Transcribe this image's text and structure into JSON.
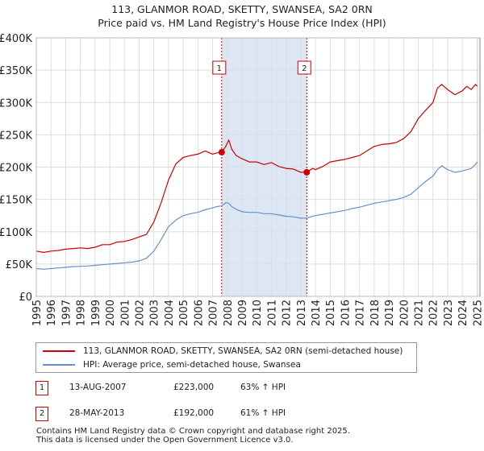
{
  "title": {
    "line1": "113, GLANMOR ROAD, SKETTY, SWANSEA, SA2 0RN",
    "line2": "Price paid vs. HM Land Registry's House Price Index (HPI)"
  },
  "legend": {
    "property": "113, GLANMOR ROAD, SKETTY, SWANSEA, SA2 0RN (semi-detached house)",
    "hpi": "HPI: Average price, semi-detached house, Swansea"
  },
  "sales": [
    {
      "num": "1",
      "date": "13-AUG-2007",
      "price": "£223,000",
      "hpi_change": "63% ↑ HPI"
    },
    {
      "num": "2",
      "date": "28-MAY-2013",
      "price": "£192,000",
      "hpi_change": "61% ↑ HPI"
    }
  ],
  "footer": {
    "line1": "Contains HM Land Registry data © Crown copyright and database right 2025.",
    "line2": "This data is licensed under the Open Government Licence v3.0."
  },
  "chart_data": {
    "type": "line",
    "title": "113, GLANMOR ROAD, SKETTY, SWANSEA, SA2 0RN — Price paid vs. HM Land Registry's House Price Index (HPI)",
    "xlabel": "",
    "ylabel": "",
    "xlim": [
      1995,
      2025.2
    ],
    "ylim": [
      0,
      400000
    ],
    "x_ticks": [
      "1995",
      "1996",
      "1997",
      "1998",
      "1999",
      "2000",
      "2001",
      "2002",
      "2003",
      "2004",
      "2005",
      "2006",
      "2007",
      "2008",
      "2009",
      "2010",
      "2011",
      "2012",
      "2013",
      "2014",
      "2015",
      "2016",
      "2017",
      "2018",
      "2019",
      "2020",
      "2021",
      "2022",
      "2023",
      "2024",
      "2025"
    ],
    "y_ticks": [
      {
        "value": 0,
        "label": "£0"
      },
      {
        "value": 50000,
        "label": "£50K"
      },
      {
        "value": 100000,
        "label": "£100K"
      },
      {
        "value": 150000,
        "label": "£150K"
      },
      {
        "value": 200000,
        "label": "£200K"
      },
      {
        "value": 250000,
        "label": "£250K"
      },
      {
        "value": 300000,
        "label": "£300K"
      },
      {
        "value": 350000,
        "label": "£350K"
      },
      {
        "value": 400000,
        "label": "£400K"
      }
    ],
    "grid": true,
    "colors": {
      "property": "#cc0000",
      "hpi": "#6a8fc8",
      "shade": "#dde6f5",
      "grid": "#dddddd"
    },
    "shaded_range": [
      2007.62,
      2013.41
    ],
    "series": [
      {
        "name": "113, GLANMOR ROAD, SKETTY, SWANSEA, SA2 0RN (semi-detached house)",
        "x": [
          1995,
          1995.5,
          1996,
          1996.5,
          1997,
          1997.5,
          1998,
          1998.5,
          1999,
          1999.5,
          2000,
          2000.5,
          2001,
          2001.5,
          2002,
          2002.5,
          2003,
          2003.5,
          2004,
          2004.5,
          2005,
          2005.5,
          2006,
          2006.5,
          2007,
          2007.3,
          2007.62,
          2007.9,
          2008.1,
          2008.3,
          2008.6,
          2009,
          2009.5,
          2010,
          2010.5,
          2011,
          2011.5,
          2012,
          2012.5,
          2013,
          2013.41,
          2013.8,
          2014,
          2014.5,
          2015,
          2015.5,
          2016,
          2016.5,
          2017,
          2017.5,
          2018,
          2018.5,
          2019,
          2019.5,
          2020,
          2020.5,
          2021,
          2021.5,
          2022,
          2022.3,
          2022.6,
          2023,
          2023.5,
          2024,
          2024.3,
          2024.6,
          2024.9,
          2025
        ],
        "values": [
          70000,
          68000,
          70000,
          71000,
          73000,
          74000,
          75000,
          74000,
          76000,
          80000,
          80000,
          84000,
          85000,
          88000,
          92000,
          96000,
          115000,
          145000,
          180000,
          205000,
          215000,
          218000,
          220000,
          225000,
          220000,
          222000,
          223000,
          232000,
          242000,
          228000,
          218000,
          213000,
          208000,
          208000,
          204000,
          207000,
          201000,
          198000,
          197000,
          192000,
          192000,
          198000,
          196000,
          201000,
          208000,
          210000,
          212000,
          215000,
          218000,
          225000,
          232000,
          235000,
          236000,
          238000,
          244000,
          255000,
          275000,
          288000,
          300000,
          322000,
          328000,
          320000,
          312000,
          318000,
          325000,
          320000,
          328000,
          325000
        ]
      },
      {
        "name": "HPI: Average price, semi-detached house, Swansea",
        "x": [
          1995,
          1995.5,
          1996,
          1996.5,
          1997,
          1997.5,
          1998,
          1998.5,
          1999,
          1999.5,
          2000,
          2000.5,
          2001,
          2001.5,
          2002,
          2002.5,
          2003,
          2003.5,
          2004,
          2004.5,
          2005,
          2005.5,
          2006,
          2006.5,
          2007,
          2007.3,
          2007.62,
          2007.9,
          2008.1,
          2008.3,
          2008.6,
          2009,
          2009.5,
          2010,
          2010.5,
          2011,
          2011.5,
          2012,
          2012.5,
          2013,
          2013.41,
          2013.8,
          2014,
          2014.5,
          2015,
          2015.5,
          2016,
          2016.5,
          2017,
          2017.5,
          2018,
          2018.5,
          2019,
          2019.5,
          2020,
          2020.5,
          2021,
          2021.5,
          2022,
          2022.3,
          2022.6,
          2023,
          2023.5,
          2024,
          2024.3,
          2024.6,
          2024.9,
          2025
        ],
        "values": [
          43000,
          42000,
          43000,
          44000,
          45000,
          46000,
          46500,
          47000,
          48000,
          49000,
          50000,
          51000,
          52000,
          53000,
          55000,
          59000,
          70000,
          88000,
          108000,
          118000,
          125000,
          128000,
          130000,
          134000,
          137000,
          139000,
          140000,
          145000,
          144000,
          139000,
          135000,
          131000,
          130000,
          130000,
          128000,
          128000,
          126000,
          124000,
          123000,
          121000,
          121000,
          124000,
          125000,
          127000,
          129000,
          131000,
          133000,
          136000,
          138000,
          141000,
          144000,
          146000,
          148000,
          150000,
          153000,
          158000,
          168000,
          178000,
          186000,
          196000,
          202000,
          196000,
          192000,
          194000,
          196000,
          198000,
          204000,
          208000
        ]
      }
    ],
    "annotations": [
      {
        "label": "1",
        "x": 2007.62,
        "value": 223000
      },
      {
        "label": "2",
        "x": 2013.41,
        "value": 192000
      }
    ]
  }
}
